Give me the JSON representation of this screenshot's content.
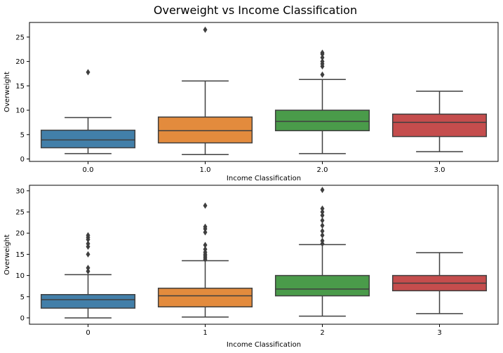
{
  "figure": {
    "title": "Overweight vs Income Classification"
  },
  "chart_data": [
    {
      "type": "box",
      "xlabel": "Income Classification",
      "ylabel": "Overweight",
      "categories": [
        "0.0",
        "1.0",
        "2.0",
        "3.0"
      ],
      "ylim": [
        -0.5,
        28
      ],
      "yticks": [
        0,
        5,
        10,
        15,
        20,
        25
      ],
      "colors": [
        "#3274a1",
        "#e1812c",
        "#3a923a",
        "#c03d3e"
      ],
      "boxes": [
        {
          "whislo": 1.1,
          "q1": 2.3,
          "med": 3.9,
          "q3": 5.9,
          "whishi": 8.5,
          "fliers": [
            17.8
          ]
        },
        {
          "whislo": 0.9,
          "q1": 3.3,
          "med": 5.8,
          "q3": 8.6,
          "whishi": 16.0,
          "fliers": [
            26.5
          ]
        },
        {
          "whislo": 1.1,
          "q1": 5.8,
          "med": 7.7,
          "q3": 10.0,
          "whishi": 16.3,
          "fliers": [
            17.3,
            19.0,
            19.5,
            20.0,
            20.8,
            21.5,
            21.8
          ]
        },
        {
          "whislo": 1.5,
          "q1": 4.6,
          "med": 7.5,
          "q3": 9.2,
          "whishi": 13.9,
          "fliers": []
        }
      ]
    },
    {
      "type": "box",
      "xlabel": "Income Classification",
      "ylabel": "Overweight",
      "categories": [
        "0",
        "1",
        "2",
        "3"
      ],
      "ylim": [
        -1.5,
        31.3
      ],
      "yticks": [
        0,
        5,
        10,
        15,
        20,
        25,
        30
      ],
      "colors": [
        "#3274a1",
        "#e1812c",
        "#3a923a",
        "#c03d3e"
      ],
      "boxes": [
        {
          "whislo": 0.0,
          "q1": 2.3,
          "med": 4.3,
          "q3": 5.5,
          "whishi": 10.2,
          "fliers": [
            11.0,
            11.8,
            15.0,
            16.8,
            17.5,
            18.5,
            19.0,
            19.5
          ]
        },
        {
          "whislo": 0.2,
          "q1": 2.6,
          "med": 5.2,
          "q3": 7.0,
          "whishi": 13.5,
          "fliers": [
            13.8,
            14.2,
            14.6,
            15.0,
            15.5,
            16.2,
            17.2,
            20.2,
            21.0,
            21.5,
            26.5
          ]
        },
        {
          "whislo": 0.4,
          "q1": 5.2,
          "med": 6.8,
          "q3": 10.0,
          "whishi": 17.3,
          "fliers": [
            17.5,
            18.2,
            19.5,
            20.5,
            21.8,
            23.0,
            24.2,
            25.0,
            25.8,
            30.2
          ]
        },
        {
          "whislo": 1.0,
          "q1": 6.4,
          "med": 8.2,
          "q3": 10.0,
          "whishi": 15.4,
          "fliers": []
        }
      ]
    }
  ]
}
